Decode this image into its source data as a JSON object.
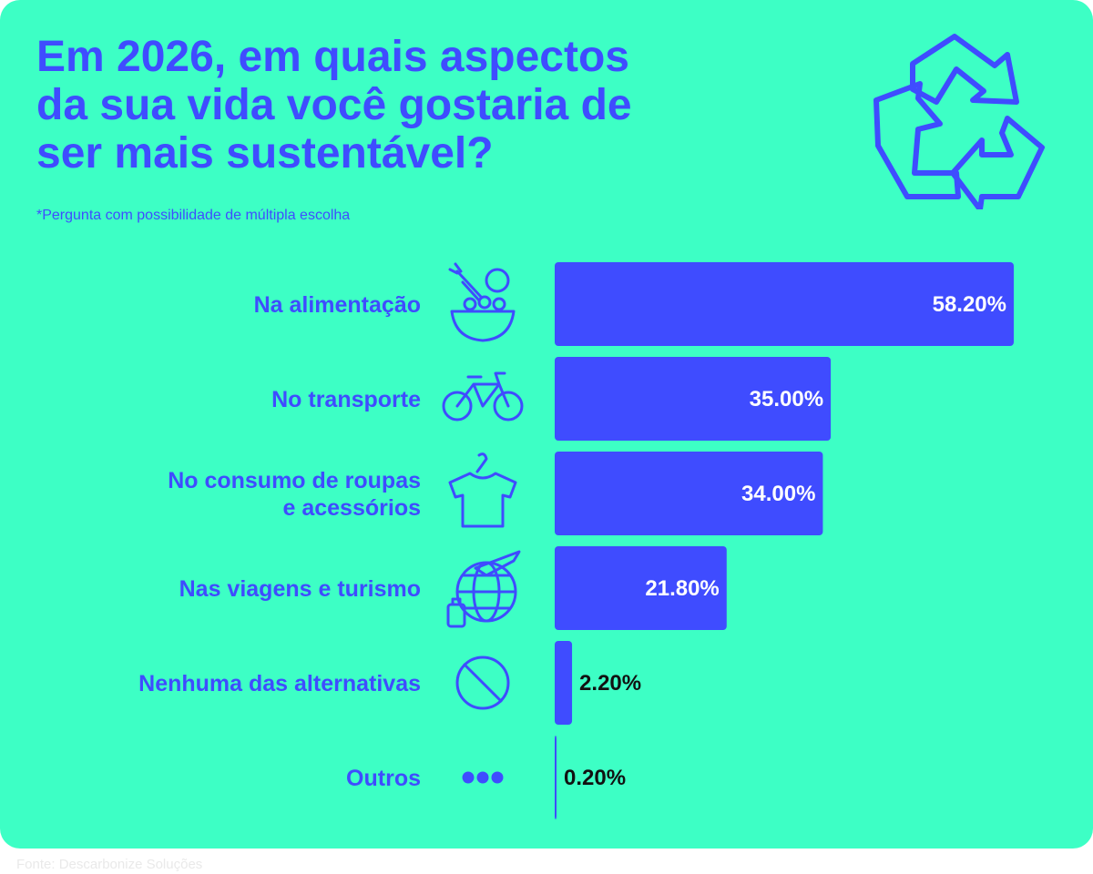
{
  "header": {
    "title": "Em 2026, em quais aspectos\nda sua vida você gostaria de\nser mais sustentável?",
    "subtitle": "*Pergunta com possibilidade de múltipla escolha"
  },
  "footer": {
    "source": "Fonte: Descarbonize Soluções"
  },
  "colors": {
    "background": "#3dffc5",
    "accent": "#3f4cff",
    "value_inside": "#ffffff",
    "value_outside": "#111111"
  },
  "decor": {
    "top_right_icon": "recycle-icon"
  },
  "chart_data": {
    "type": "bar",
    "orientation": "horizontal",
    "categories": [
      "Na alimentação",
      "No transporte",
      "No consumo de roupas\ne acessórios",
      "Nas viagens e turismo",
      "Nenhuma das alternativas",
      "Outros"
    ],
    "icons": [
      "food-bowl-icon",
      "bicycle-icon",
      "tshirt-icon",
      "globe-travel-icon",
      "prohibited-icon",
      "more-dots-icon"
    ],
    "values": [
      58.2,
      35.0,
      34.0,
      21.8,
      2.2,
      0.2
    ],
    "value_labels": [
      "58.20%",
      "35.00%",
      "34.00%",
      "21.80%",
      "2.20%",
      "0.20%"
    ],
    "xlim": [
      0,
      58.2
    ],
    "grid": false,
    "legend": "none"
  }
}
